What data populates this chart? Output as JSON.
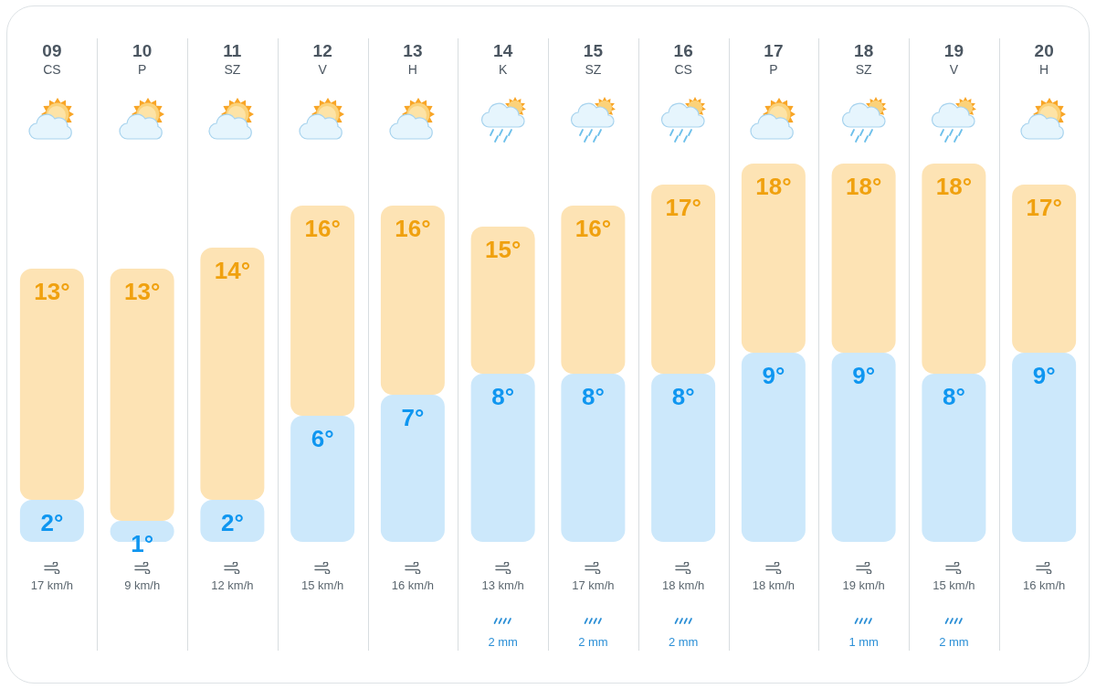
{
  "chart_data": {
    "type": "bar",
    "categories": [
      "09\nCS",
      "10\nP",
      "11\nSZ",
      "12\nV",
      "13\nH",
      "14\nK",
      "15\nSZ",
      "16\nCS",
      "17\nP",
      "18\nSZ",
      "19\nV",
      "20\nH"
    ],
    "series": [
      {
        "color": "#cce8fb",
        "values": [
          2,
          1,
          2,
          6,
          7,
          8,
          8,
          8,
          9,
          9,
          8,
          9
        ],
        "value_labels": [
          "2°",
          "1°",
          "2°",
          "6°",
          "7°",
          "8°",
          "8°",
          "8°",
          "9°",
          "9°",
          "8°",
          "9°"
        ]
      },
      {
        "color": "#fde3b4",
        "values": [
          11,
          12,
          12,
          10,
          9,
          7,
          8,
          9,
          9,
          9,
          10,
          8
        ]
      }
    ],
    "stacked": true,
    "totals": [
      "13°",
      "13°",
      "14°",
      "16°",
      "16°",
      "15°",
      "16°",
      "17°",
      "18°",
      "18°",
      "18°",
      "17°"
    ],
    "tick_labels": "x",
    "annotations": [
      "17 km/h",
      "9 km/h",
      "12 km/h",
      "15 km/h",
      "16 km/h",
      "13 km/h\n2 mm",
      "17 km/h\n2 mm",
      "18 km/h\n2 mm",
      "18 km/h",
      "19 km/h\n1 mm",
      "15 km/h\n2 mm",
      "16 km/h"
    ]
  }
}
